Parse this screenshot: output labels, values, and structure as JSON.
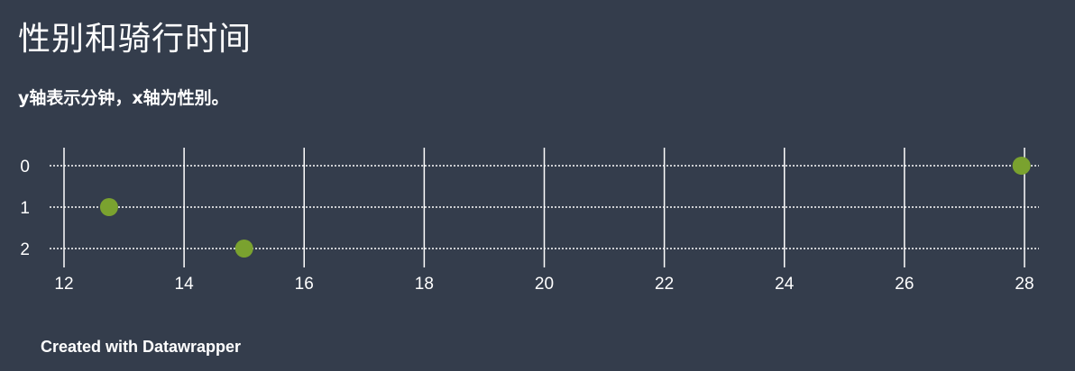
{
  "header": {
    "title": "性别和骑行时间",
    "subtitle": "y轴表示分钟，x轴为性别。"
  },
  "footer": {
    "credit": "Created with Datawrapper"
  },
  "colors": {
    "background": "#343d4c",
    "point": "#7aa22f",
    "text": "#ffffff"
  },
  "chart_data": {
    "type": "scatter",
    "title": "性别和骑行时间",
    "subtitle": "y轴表示分钟，x轴为性别。",
    "xlabel": "",
    "ylabel": "",
    "xlim": [
      12,
      28
    ],
    "ylim": [
      0,
      2
    ],
    "x_ticks": [
      12,
      14,
      16,
      18,
      20,
      22,
      24,
      26,
      28
    ],
    "y_ticks": [
      0,
      1,
      2
    ],
    "grid": true,
    "points": [
      {
        "x": 12.75,
        "y": 1
      },
      {
        "x": 15.0,
        "y": 2
      },
      {
        "x": 27.95,
        "y": 0
      }
    ]
  }
}
